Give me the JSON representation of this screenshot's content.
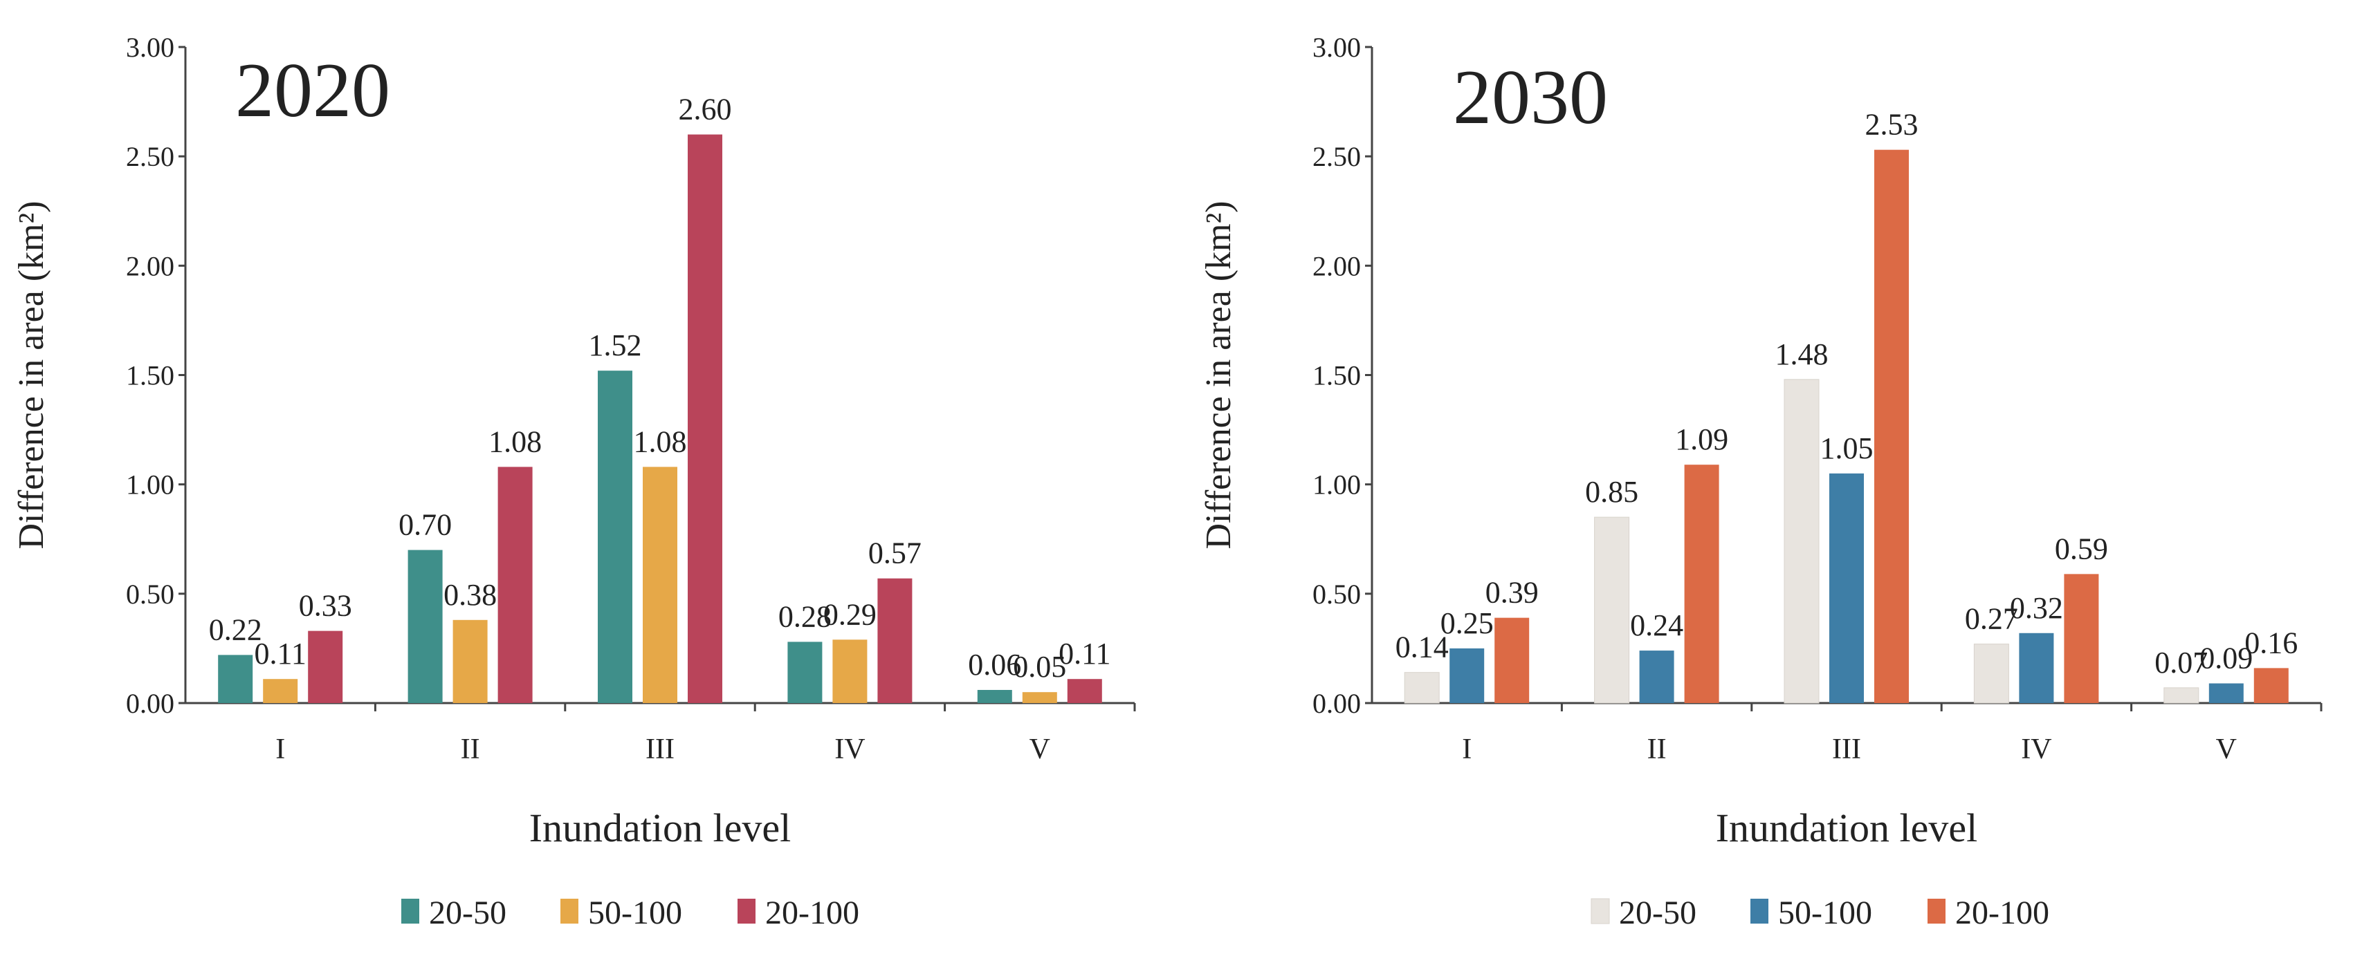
{
  "chart_data": [
    {
      "type": "bar",
      "title": "2020",
      "xlabel": "Inundation level",
      "ylabel": "Difference in area (km²)",
      "ylim": [
        0,
        3.0
      ],
      "yticks": [
        "0.00",
        "0.50",
        "1.00",
        "1.50",
        "2.00",
        "2.50",
        "3.00"
      ],
      "grid": false,
      "legend_position": "bottom",
      "categories": [
        "I",
        "II",
        "III",
        "IV",
        "V"
      ],
      "series": [
        {
          "name": "20-50",
          "color": "#3f8f8a",
          "values": [
            0.22,
            0.7,
            1.52,
            0.28,
            0.06
          ],
          "labels": [
            "0.22",
            "0.70",
            "1.52",
            "0.28",
            "0.06"
          ]
        },
        {
          "name": "50-100",
          "color": "#e6a848",
          "values": [
            0.11,
            0.38,
            1.08,
            0.29,
            0.05
          ],
          "labels": [
            "0.11",
            "0.38",
            "1.08",
            "0.29",
            "0.05"
          ]
        },
        {
          "name": "20-100",
          "color": "#b9445a",
          "values": [
            0.33,
            1.08,
            2.6,
            0.57,
            0.11
          ],
          "labels": [
            "0.33",
            "1.08",
            "2.60",
            "0.57",
            "0.11"
          ]
        }
      ]
    },
    {
      "type": "bar",
      "title": "2030",
      "xlabel": "Inundation level",
      "ylabel": "Difference in area (km²)",
      "ylim": [
        0,
        3.0
      ],
      "yticks": [
        "0.00",
        "0.50",
        "1.00",
        "1.50",
        "2.00",
        "2.50",
        "3.00"
      ],
      "grid": false,
      "legend_position": "bottom",
      "categories": [
        "I",
        "II",
        "III",
        "IV",
        "V"
      ],
      "series": [
        {
          "name": "20-50",
          "color": "#e8e4df",
          "values": [
            0.14,
            0.85,
            1.48,
            0.27,
            0.07
          ],
          "labels": [
            "0.14",
            "0.85",
            "1.48",
            "0.27",
            "0.07"
          ]
        },
        {
          "name": "50-100",
          "color": "#3e7ea6",
          "values": [
            0.25,
            0.24,
            1.05,
            0.32,
            0.09
          ],
          "labels": [
            "0.25",
            "0.24",
            "1.05",
            "0.32",
            "0.09"
          ]
        },
        {
          "name": "20-100",
          "color": "#dc6a45",
          "values": [
            0.39,
            1.09,
            2.53,
            0.59,
            0.16
          ],
          "labels": [
            "0.39",
            "1.09",
            "2.53",
            "0.59",
            "0.16"
          ]
        }
      ]
    }
  ]
}
